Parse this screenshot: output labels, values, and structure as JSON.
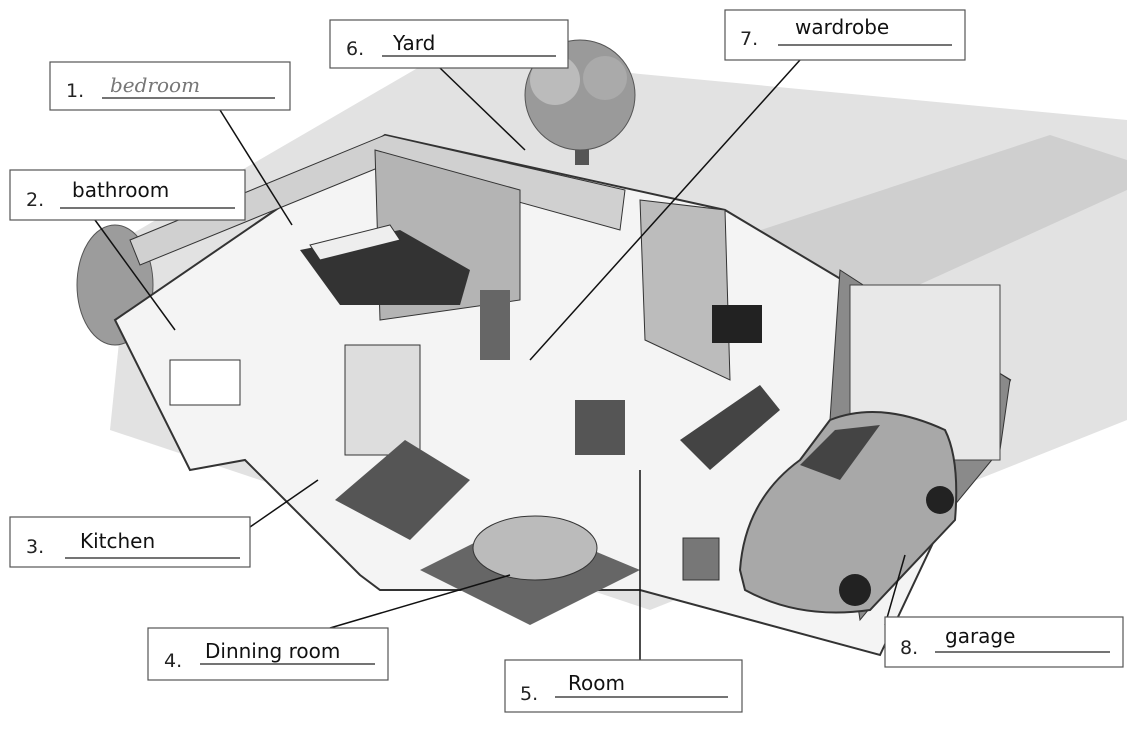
{
  "labels": [
    {
      "number": "1.",
      "answer": "bedroom"
    },
    {
      "number": "2.",
      "answer": "bathroom"
    },
    {
      "number": "3.",
      "answer": "Kitchen"
    },
    {
      "number": "4.",
      "answer": "Dinning room"
    },
    {
      "number": "5.",
      "answer": "Room"
    },
    {
      "number": "6.",
      "answer": "Yard"
    },
    {
      "number": "7.",
      "answer": "wardrobe"
    },
    {
      "number": "8.",
      "answer": "garage"
    }
  ]
}
